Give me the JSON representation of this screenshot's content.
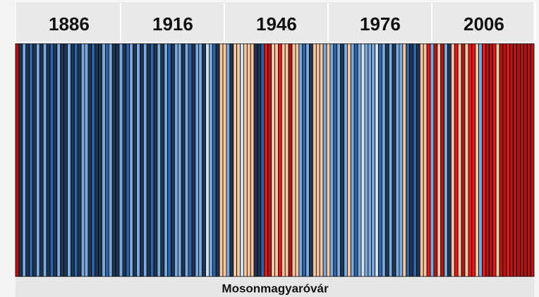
{
  "chart_data": {
    "type": "stripes",
    "title": "Mosonmagyaróvár",
    "x": [
      1871,
      1872,
      1873,
      1874,
      1875,
      1876,
      1877,
      1878,
      1879,
      1880,
      1881,
      1882,
      1883,
      1884,
      1885,
      1886,
      1887,
      1888,
      1889,
      1890,
      1891,
      1892,
      1893,
      1894,
      1895,
      1896,
      1897,
      1898,
      1899,
      1900,
      1901,
      1902,
      1903,
      1904,
      1905,
      1906,
      1907,
      1908,
      1909,
      1910,
      1911,
      1912,
      1913,
      1914,
      1915,
      1916,
      1917,
      1918,
      1919,
      1920,
      1921,
      1922,
      1923,
      1924,
      1925,
      1926,
      1927,
      1928,
      1929,
      1930,
      1931,
      1932,
      1933,
      1934,
      1935,
      1936,
      1937,
      1938,
      1939,
      1940,
      1941,
      1942,
      1943,
      1944,
      1945,
      1946,
      1947,
      1948,
      1949,
      1950,
      1951,
      1952,
      1953,
      1954,
      1955,
      1956,
      1957,
      1958,
      1959,
      1960,
      1961,
      1962,
      1963,
      1964,
      1965,
      1966,
      1967,
      1968,
      1969,
      1970,
      1971,
      1972,
      1973,
      1974,
      1975,
      1976,
      1977,
      1978,
      1979,
      1980,
      1981,
      1982,
      1983,
      1984,
      1985,
      1986,
      1987,
      1988,
      1989,
      1990,
      1991,
      1992,
      1993,
      1994,
      1995,
      1996,
      1997,
      1998,
      1999,
      2000,
      2001,
      2002,
      2003,
      2004,
      2005,
      2006,
      2007,
      2008,
      2009,
      2010,
      2011,
      2012,
      2013,
      2014,
      2015,
      2016,
      2017,
      2018,
      2019,
      2020
    ],
    "values": [
      1.0,
      -1.2,
      -0.6,
      -1.2,
      -0.8,
      -1.2,
      -0.5,
      -1.2,
      -0.3,
      -1.2,
      -0.8,
      -1.2,
      -0.5,
      -1.2,
      -1.2,
      -0.3,
      -1.2,
      -0.8,
      -1.2,
      -0.5,
      -0.3,
      -1.2,
      -0.8,
      -1.2,
      -1.2,
      -0.5,
      -0.8,
      -0.3,
      -1.2,
      -1.2,
      -0.5,
      -1.2,
      -0.8,
      -0.3,
      -1.2,
      -0.5,
      -1.2,
      -0.3,
      -1.2,
      -0.8,
      -1.2,
      -0.5,
      -1.2,
      -0.3,
      -0.8,
      -1.2,
      -0.3,
      -0.5,
      -1.2,
      -0.3,
      -0.8,
      -1.2,
      -0.5,
      -0.3,
      -1.2,
      0.1,
      -0.5,
      -0.8,
      -1.2,
      0.3,
      0.3,
      -0.3,
      -1.2,
      0.5,
      0.3,
      0.1,
      0.5,
      0.3,
      0.3,
      -1.2,
      -1.2,
      -0.8,
      0.6,
      1.0,
      0.3,
      0.5,
      0.6,
      0.3,
      0.5,
      1.0,
      0.3,
      0.5,
      -0.3,
      -0.8,
      -0.5,
      -1.2,
      0.3,
      0.5,
      0.3,
      -0.3,
      0.5,
      -0.5,
      -0.8,
      -0.3,
      -1.2,
      -0.3,
      0.3,
      -0.5,
      -0.8,
      -0.3,
      -0.1,
      -0.3,
      -0.5,
      -0.3,
      -0.1,
      -0.8,
      -0.3,
      -1.2,
      -0.5,
      -1.2,
      -0.5,
      -0.3,
      0.3,
      -0.8,
      -1.2,
      -0.8,
      -1.2,
      0.3,
      0.5,
      0.6,
      -0.3,
      1.0,
      0.3,
      1.0,
      -0.5,
      -1.2,
      0.3,
      0.6,
      0.5,
      1.0,
      0.5,
      0.6,
      0.8,
      0.3,
      -0.3,
      0.6,
      1.1,
      1.0,
      0.8,
      0.3,
      1.1,
      1.0,
      0.6,
      1.3,
      1.5,
      1.2,
      1.3,
      1.6,
      1.5,
      1.4
    ],
    "colors": [
      "#1e3556",
      "#2f64a8",
      "#7ba9dc",
      "#cfe0f2",
      "#f9c6a2",
      "#e3191c",
      "#b01818"
    ],
    "clim": [
      -1.4,
      1.4
    ],
    "xlim": [
      1871,
      2021
    ],
    "xticks": [
      1886,
      1916,
      1946,
      1976,
      2006
    ]
  }
}
